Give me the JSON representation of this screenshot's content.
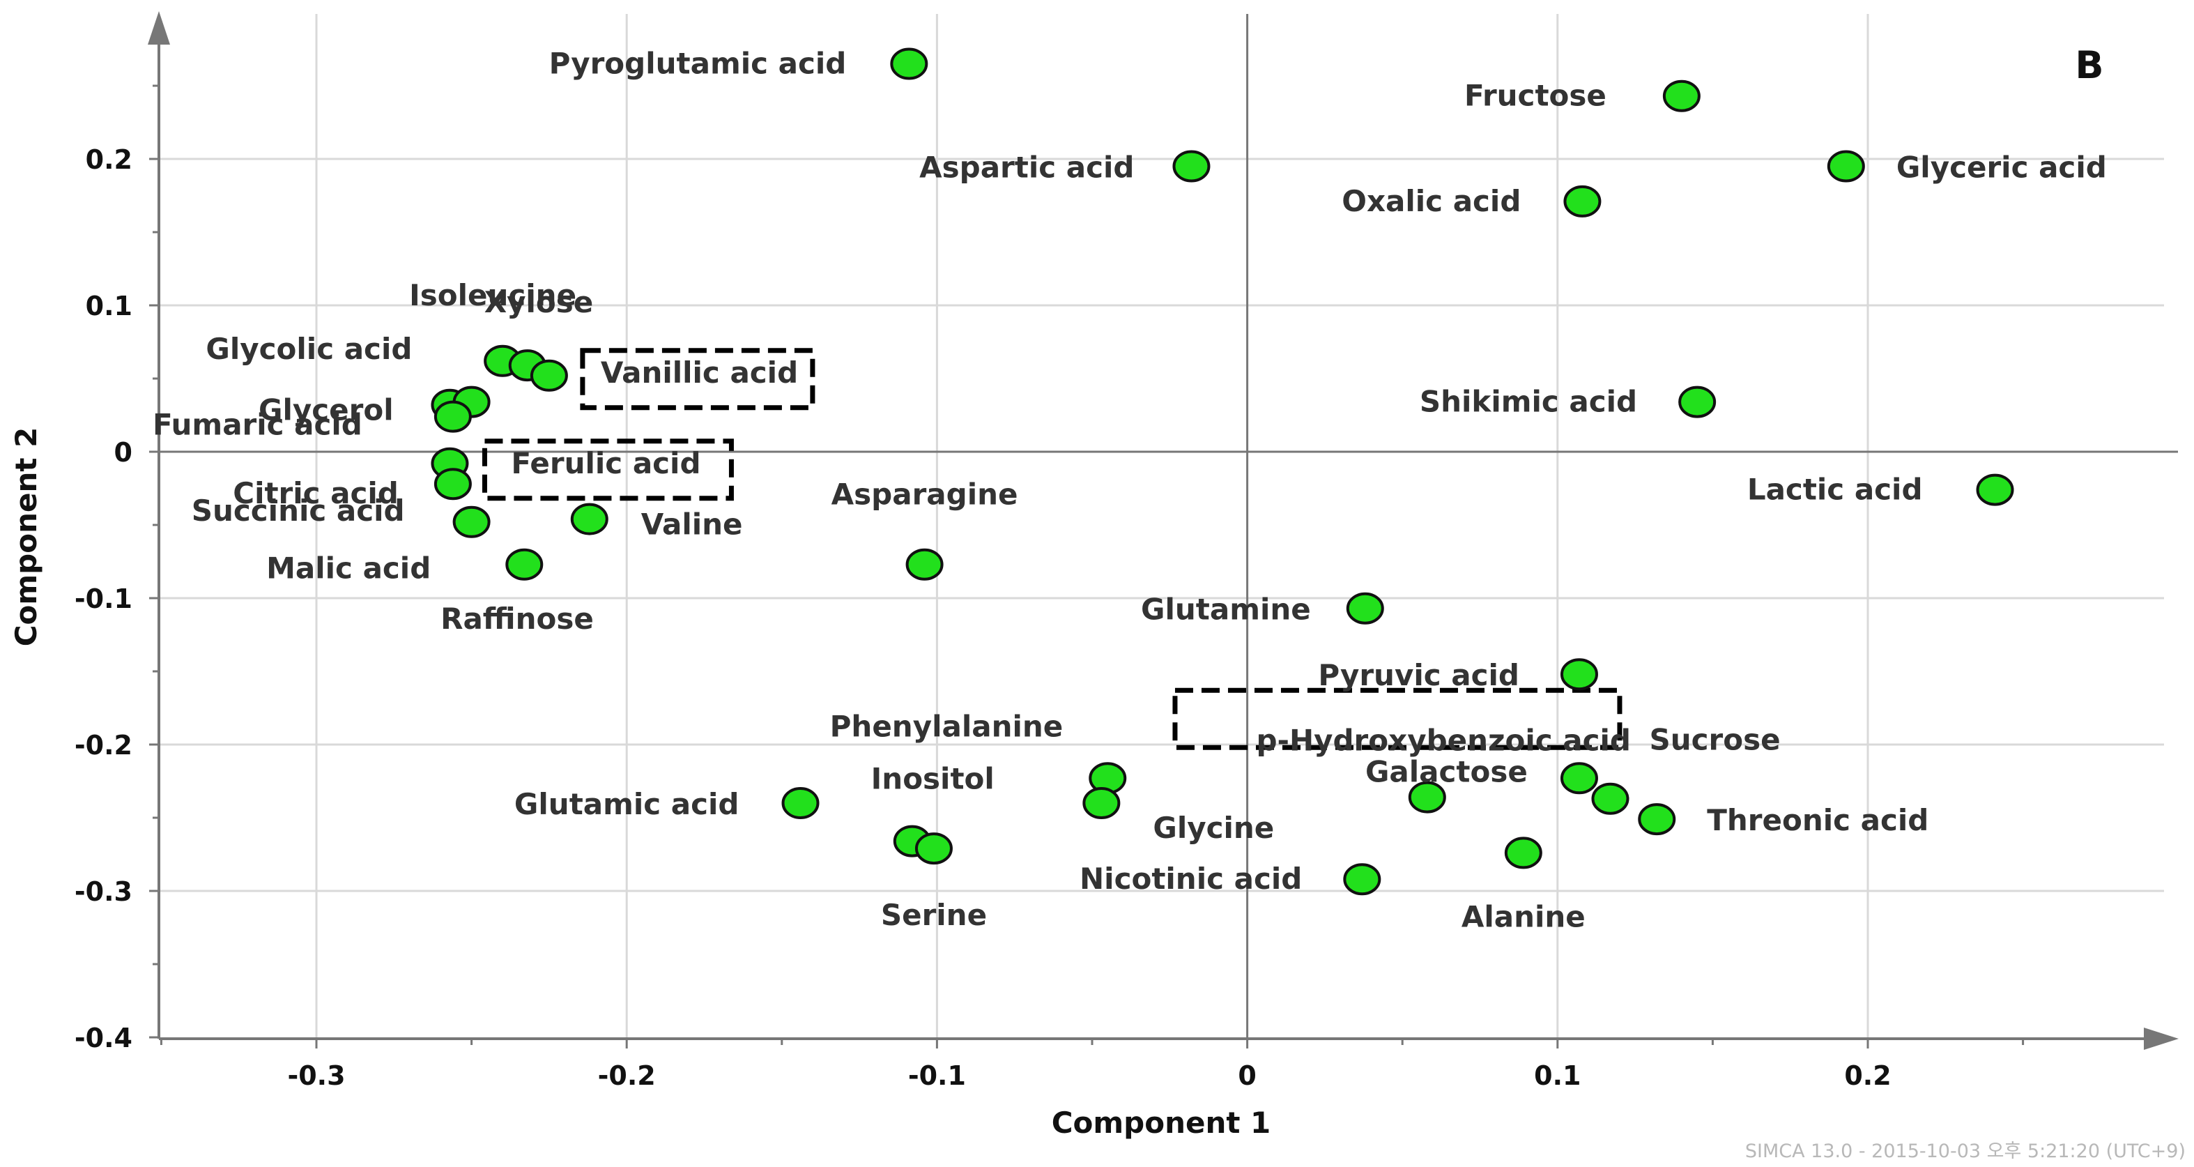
{
  "chart_data": {
    "type": "scatter",
    "corner_label": "B",
    "xlabel": "Component 1",
    "ylabel": "Component 2",
    "xlim": [
      -0.35,
      0.3
    ],
    "ylim": [
      -0.4,
      0.3
    ],
    "xticks": [
      "-0.3",
      "-0.2",
      "-0.1",
      "0",
      "0.1",
      "0.2"
    ],
    "xtick_values": [
      -0.3,
      -0.2,
      -0.1,
      0,
      0.1,
      0.2
    ],
    "yticks": [
      "0.2",
      "0.1",
      "0",
      "-0.1",
      "-0.2",
      "-0.3",
      "-0.4"
    ],
    "ytick_values": [
      0.2,
      0.1,
      0,
      -0.1,
      -0.2,
      -0.3,
      -0.4
    ],
    "grid": true,
    "point_color": "#22e01c",
    "points": [
      {
        "label": "Pyroglutamic acid",
        "x": -0.109,
        "y": 0.265
      },
      {
        "label": "Aspartic acid",
        "x": -0.018,
        "y": 0.195
      },
      {
        "label": "Fructose",
        "x": 0.14,
        "y": 0.243
      },
      {
        "label": "Glyceric acid",
        "x": 0.193,
        "y": 0.195
      },
      {
        "label": "Oxalic acid",
        "x": 0.108,
        "y": 0.171
      },
      {
        "label": "Isoleucine",
        "x": -0.24,
        "y": 0.062
      },
      {
        "label": "Xylose",
        "x": -0.232,
        "y": 0.059
      },
      {
        "label": "Vanillic acid",
        "x": -0.225,
        "y": 0.052,
        "highlight": true
      },
      {
        "label": "Glycolic acid",
        "x": -0.257,
        "y": 0.032
      },
      {
        "label": "Glycerol",
        "x": -0.25,
        "y": 0.034
      },
      {
        "label": "Fumaric acid",
        "x": -0.256,
        "y": 0.024
      },
      {
        "label": "Ferulic acid",
        "x": -0.257,
        "y": -0.008,
        "highlight": true
      },
      {
        "label": "Citric acid",
        "x": -0.256,
        "y": -0.022
      },
      {
        "label": "Succinic acid",
        "x": -0.25,
        "y": -0.048
      },
      {
        "label": "Valine",
        "x": -0.212,
        "y": -0.046
      },
      {
        "label": "Malic acid",
        "x": -0.233,
        "y": -0.077
      },
      {
        "label": "Shikimic acid",
        "x": 0.145,
        "y": 0.034
      },
      {
        "label": "Lactic acid",
        "x": 0.241,
        "y": -0.026
      },
      {
        "label": "Asparagine",
        "x": -0.104,
        "y": -0.077
      },
      {
        "label": "Glutamine",
        "x": 0.038,
        "y": -0.107
      },
      {
        "label": "Pyruvic acid",
        "x": 0.107,
        "y": -0.152
      },
      {
        "label": "p-Hydroxybenzoic acid",
        "x": 0.107,
        "y": -0.223,
        "highlight": true
      },
      {
        "label": "Sucrose",
        "x": 0.117,
        "y": -0.237
      },
      {
        "label": "Threonic acid",
        "x": 0.132,
        "y": -0.251
      },
      {
        "label": "Galactose",
        "x": 0.058,
        "y": -0.236
      },
      {
        "label": "Alanine",
        "x": 0.089,
        "y": -0.274
      },
      {
        "label": "Nicotinic acid",
        "x": 0.037,
        "y": -0.292
      },
      {
        "label": "Phenylalanine",
        "x": -0.045,
        "y": -0.223
      },
      {
        "label": "Glycine",
        "x": -0.047,
        "y": -0.24
      },
      {
        "label": "Glutamic acid",
        "x": -0.144,
        "y": -0.24
      },
      {
        "label": "Inositol",
        "x": -0.108,
        "y": -0.266
      },
      {
        "label": "Serine",
        "x": -0.101,
        "y": -0.271
      },
      {
        "label": "Raffinose",
        "x": null,
        "y": null
      }
    ]
  },
  "footer": {
    "software": "SIMCA 13.0 - 2015-10-03 오후 5:21:20 (UTC+9)"
  }
}
